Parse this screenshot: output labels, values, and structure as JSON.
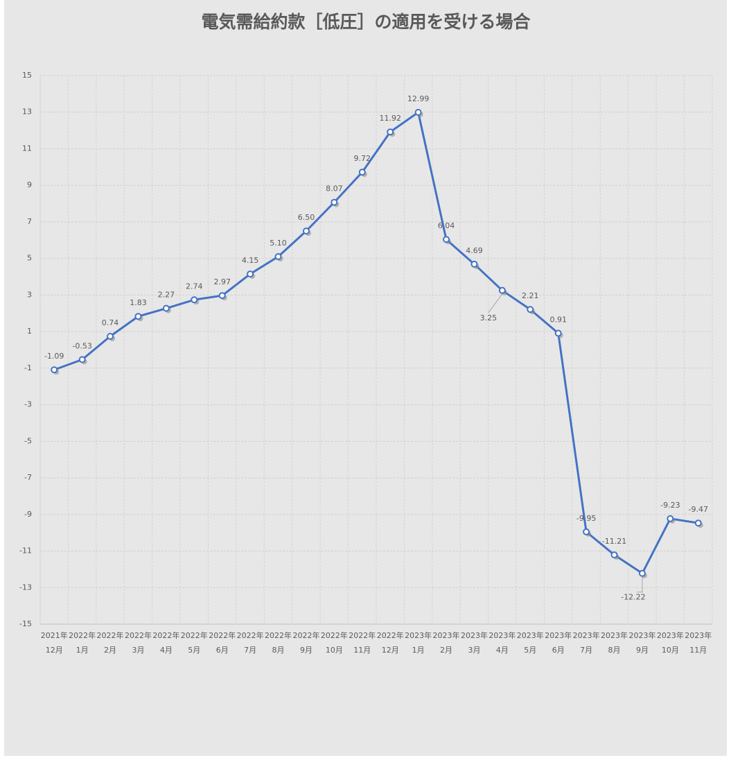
{
  "chart_data": {
    "type": "line",
    "title": "電気需給約款［低圧］の適用を受ける場合",
    "categories": [
      [
        "2021年",
        "12月"
      ],
      [
        "2022年",
        "1月"
      ],
      [
        "2022年",
        "2月"
      ],
      [
        "2022年",
        "3月"
      ],
      [
        "2022年",
        "4月"
      ],
      [
        "2022年",
        "5月"
      ],
      [
        "2022年",
        "6月"
      ],
      [
        "2022年",
        "7月"
      ],
      [
        "2022年",
        "8月"
      ],
      [
        "2022年",
        "9月"
      ],
      [
        "2022年",
        "10月"
      ],
      [
        "2022年",
        "11月"
      ],
      [
        "2022年",
        "12月"
      ],
      [
        "2023年",
        "1月"
      ],
      [
        "2023年",
        "2月"
      ],
      [
        "2023年",
        "3月"
      ],
      [
        "2023年",
        "4月"
      ],
      [
        "2023年",
        "5月"
      ],
      [
        "2023年",
        "6月"
      ],
      [
        "2023年",
        "7月"
      ],
      [
        "2023年",
        "8月"
      ],
      [
        "2023年",
        "9月"
      ],
      [
        "2023年",
        "10月"
      ],
      [
        "2023年",
        "11月"
      ]
    ],
    "values": [
      -1.09,
      -0.53,
      0.74,
      1.83,
      2.27,
      2.74,
      2.97,
      4.15,
      5.1,
      6.5,
      8.07,
      9.72,
      11.92,
      12.99,
      6.04,
      4.69,
      3.25,
      2.21,
      0.91,
      -9.95,
      -11.21,
      -12.22,
      -9.23,
      -9.47
    ],
    "value_labels": [
      "-1.09",
      "-0.53",
      "0.74",
      "1.83",
      "2.27",
      "2.74",
      "2.97",
      "4.15",
      "5.10",
      "6.50",
      "8.07",
      "9.72",
      "11.92",
      "12.99",
      "6.04",
      "4.69",
      "3.25",
      "2.21",
      "0.91",
      "-9.95",
      "-11.21",
      "-12.22",
      "-9.23",
      "-9.47"
    ],
    "color": "#4472c4",
    "ylim": [
      -15,
      15
    ],
    "yticks": [
      -15,
      -13,
      -11,
      -9,
      -7,
      -5,
      -3,
      -1,
      1,
      3,
      5,
      7,
      9,
      11,
      13,
      15
    ],
    "grid": true
  }
}
